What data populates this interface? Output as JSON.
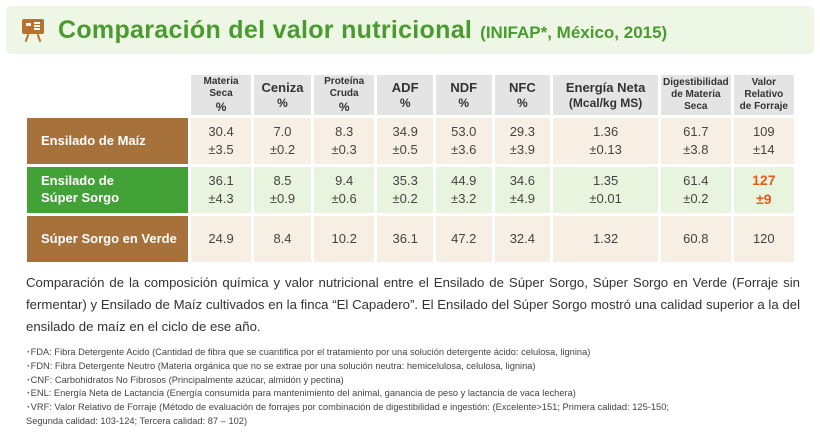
{
  "title": {
    "main": "Comparación del valor nutricional",
    "sub": "(INIFAP*, México, 2015)"
  },
  "table": {
    "headers": [
      {
        "line1": "Materia Seca",
        "line2": "%"
      },
      {
        "line1": "Ceniza",
        "line2": "%"
      },
      {
        "line1": "Proteína Cruda",
        "line2": "%"
      },
      {
        "line1": "ADF",
        "line2": "%"
      },
      {
        "line1": "NDF",
        "line2": "%"
      },
      {
        "line1": "NFC",
        "line2": "%"
      },
      {
        "line1": "Energía Neta",
        "line2": "(Mcal/kg MS)"
      },
      {
        "line1": "Digestibilidad",
        "line2": "de Materia Seca"
      },
      {
        "line1": "Valor Relativo",
        "line2": "de Forraje"
      }
    ],
    "rows": [
      {
        "label": "Ensilado de Maíz",
        "cells": [
          {
            "mean": "30.4",
            "sd": "±3.5"
          },
          {
            "mean": "7.0",
            "sd": "±0.2"
          },
          {
            "mean": "8.3",
            "sd": "±0.3"
          },
          {
            "mean": "34.9",
            "sd": "±0.5"
          },
          {
            "mean": "53.0",
            "sd": "±3.6"
          },
          {
            "mean": "29.3",
            "sd": "±3.9"
          },
          {
            "mean": "1.36",
            "sd": "±0.13"
          },
          {
            "mean": "61.7",
            "sd": "±3.8"
          },
          {
            "mean": "109",
            "sd": "±14"
          }
        ]
      },
      {
        "label_line1": "Ensilado de",
        "label_line2": "Súper Sorgo",
        "cells": [
          {
            "mean": "36.1",
            "sd": "±4.3"
          },
          {
            "mean": "8.5",
            "sd": "±0.9"
          },
          {
            "mean": "9.4",
            "sd": "±0.6"
          },
          {
            "mean": "35.3",
            "sd": "±0.2"
          },
          {
            "mean": "44.9",
            "sd": "±3.2"
          },
          {
            "mean": "34.6",
            "sd": "±4.9"
          },
          {
            "mean": "1.35",
            "sd": "±0.01"
          },
          {
            "mean": "61.4",
            "sd": "±0.2"
          },
          {
            "mean": "127",
            "sd": "±9"
          }
        ]
      },
      {
        "label": "Súper Sorgo en Verde",
        "cells": [
          "24.9",
          "8.4",
          "10.2",
          "36.1",
          "47.2",
          "32.4",
          "1.32",
          "60.8",
          "120"
        ]
      }
    ]
  },
  "description": "Comparación de la composición química y valor nutricional entre el Ensilado de Súper Sorgo, Súper Sorgo en Verde (Forraje sin fermentar) y Ensilado de Maíz cultivados en la finca “El Capadero”. El Ensilado del Súper Sorgo mostró una calidad superior a la del ensilado de maíz en el ciclo de ese año.",
  "notes": [
    "･FDA: Fibra Detergente Acido (Cantidad de fibra que se cuantifica por el tratamiento por una solución detergente ácido: celulosa, lignina)",
    "･FDN: Fibra Detergente Neutro (Materia orgánica que no se extrae por una solución neutra: hemicelulosa, celulosa, lignina)",
    "･CNF: Carbohidratos No Fibrosos (Principalmente azúcar, almidón y pectina)",
    "･ENL: Energía Neta de Lactancia (Energía consumida para mantenimiento del animal, ganancia de peso y lactancia de vaca lechera)",
    "･VRF: Valor Relativo de Forraje (Método de evaluación de forrajes por combinación de digestibilidad e ingestión: (Excelente>151; Primera calidad: 125-150;",
    " Segunda calidad: 103-124; Tercera calidad: 87 – 102)"
  ],
  "colors": {
    "title_green": "#4a9b2e",
    "maiz_brown": "#a7713c",
    "sorgo_green": "#42a137",
    "highlight_orange": "#ea5a1c"
  },
  "icons": {
    "title": "chalkboard-icon"
  }
}
